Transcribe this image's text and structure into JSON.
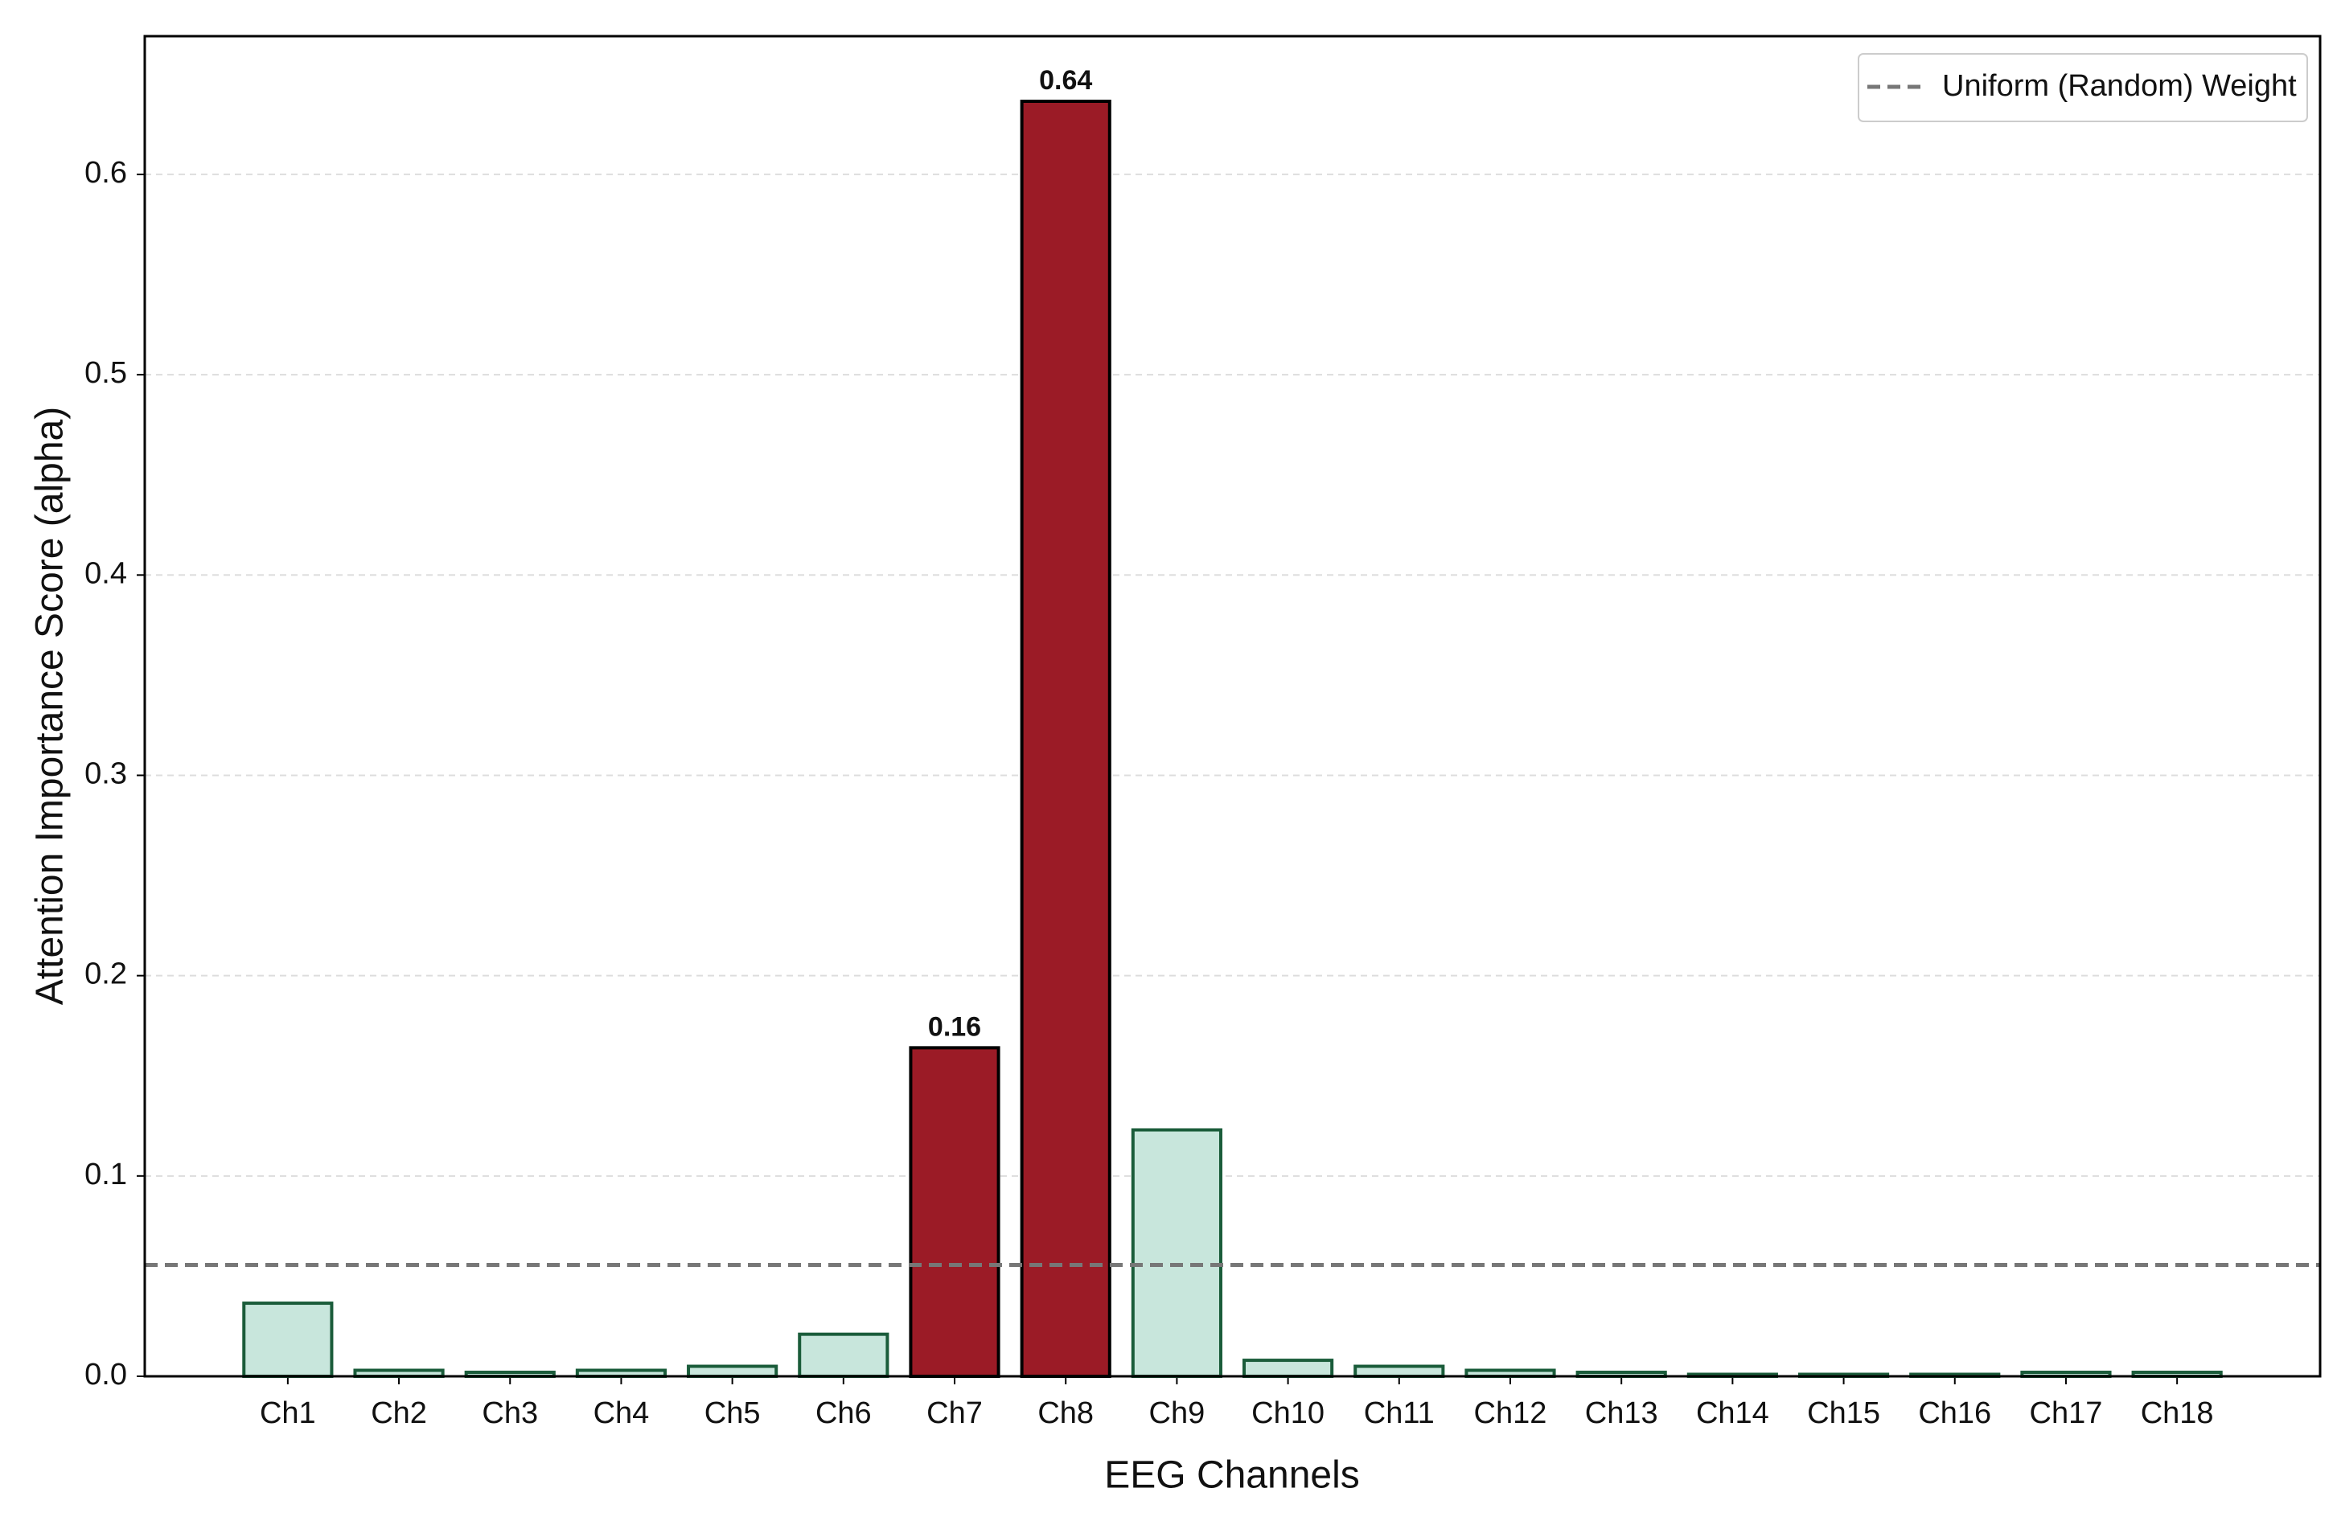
{
  "chart_data": {
    "type": "bar",
    "xlabel": "EEG Channels",
    "ylabel": "Attention Importance Score (alpha)",
    "categories": [
      "Ch1",
      "Ch2",
      "Ch3",
      "Ch4",
      "Ch5",
      "Ch6",
      "Ch7",
      "Ch8",
      "Ch9",
      "Ch10",
      "Ch11",
      "Ch12",
      "Ch13",
      "Ch14",
      "Ch15",
      "Ch16",
      "Ch17",
      "Ch18"
    ],
    "values": [
      0.0365,
      0.003,
      0.002,
      0.003,
      0.005,
      0.021,
      0.164,
      0.6365,
      0.123,
      0.008,
      0.005,
      0.003,
      0.002,
      0.001,
      0.001,
      0.001,
      0.002,
      0.002
    ],
    "value_labels": [
      null,
      null,
      null,
      null,
      null,
      null,
      "0.16",
      "0.64",
      null,
      null,
      null,
      null,
      null,
      null,
      null,
      null,
      null,
      null
    ],
    "colors": [
      "#c8e6dc",
      "#c8e6dc",
      "#c8e6dc",
      "#c8e6dc",
      "#c8e6dc",
      "#c8e6dc",
      "#9b1b26",
      "#9b1b26",
      "#c8e6dc",
      "#c8e6dc",
      "#c8e6dc",
      "#c8e6dc",
      "#c8e6dc",
      "#c8e6dc",
      "#c8e6dc",
      "#c8e6dc",
      "#c8e6dc",
      "#c8e6dc"
    ],
    "edgecolors": [
      "#1a5c3a",
      "#1a5c3a",
      "#1a5c3a",
      "#1a5c3a",
      "#1a5c3a",
      "#1a5c3a",
      "#000000",
      "#000000",
      "#1a5c3a",
      "#1a5c3a",
      "#1a5c3a",
      "#1a5c3a",
      "#1a5c3a",
      "#1a5c3a",
      "#1a5c3a",
      "#1a5c3a",
      "#1a5c3a",
      "#1a5c3a"
    ],
    "reference_line": {
      "value": 0.0556,
      "label": "Uniform (Random) Weight",
      "color": "#777777"
    },
    "ylim": [
      0,
      0.669
    ],
    "yticks": [
      {
        "value": 0,
        "label": "0.0"
      },
      0.1,
      0.2,
      0.3,
      0.4,
      0.5,
      0.6
    ],
    "grid": true,
    "legend_position": "upper-right"
  }
}
